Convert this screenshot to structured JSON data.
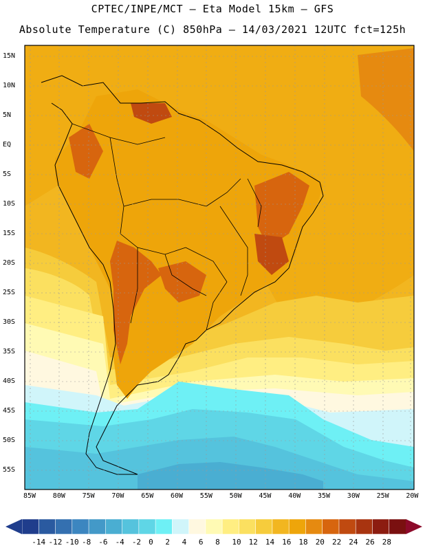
{
  "header": {
    "line1": "CPTEC/INPE/MCT –  Eta Model 15km – GFS",
    "line2": "Absolute Temperature (C) 850hPa – 14/03/2021 12UTC fct=125h"
  },
  "map": {
    "lat_labels": [
      "15N",
      "10N",
      "5N",
      "EQ",
      "5S",
      "10S",
      "15S",
      "20S",
      "25S",
      "30S",
      "35S",
      "40S",
      "45S",
      "50S",
      "55S"
    ],
    "lon_labels": [
      "85W",
      "80W",
      "75W",
      "70W",
      "65W",
      "60W",
      "55W",
      "50W",
      "45W",
      "40W",
      "35W",
      "30W",
      "25W",
      "20W"
    ]
  },
  "colorbar": {
    "labels": [
      "-14",
      "-12",
      "-10",
      "-8",
      "-6",
      "-4",
      "-2",
      "0",
      "2",
      "4",
      "6",
      "8",
      "10",
      "12",
      "14",
      "16",
      "18",
      "20",
      "22",
      "24",
      "26",
      "28"
    ],
    "colors": [
      "#1f3d8c",
      "#2a5aa0",
      "#3470b0",
      "#3c86c0",
      "#4399c8",
      "#4aaed2",
      "#55c3dd",
      "#5fd6e6",
      "#6ef0f5",
      "#d0f5fa",
      "#fff8e0",
      "#fffab4",
      "#ffee82",
      "#fbe060",
      "#f6cc3c",
      "#f2b620",
      "#eea50a",
      "#e68a10",
      "#d7650e",
      "#c04a10",
      "#a83410",
      "#8c1c10",
      "#7a1010"
    ]
  }
}
